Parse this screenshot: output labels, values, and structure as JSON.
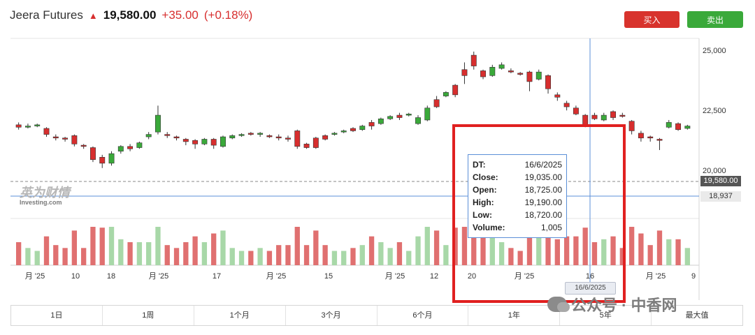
{
  "header": {
    "name": "Jeera Futures",
    "arrow": "up",
    "price": "19,580.00",
    "change": "+35.00",
    "change_pct": "(+0.18%)"
  },
  "buttons": {
    "buy": "买入",
    "sell": "卖出"
  },
  "watermark": {
    "line1": "英为财情",
    "line2": "Investing.com"
  },
  "y_axis_labels": [
    "25,000",
    "22,500",
    "20,000"
  ],
  "price_tags": {
    "current": "19,580.00",
    "crosshair": "18,937"
  },
  "x_axis_labels": [
    "月 '25",
    "10",
    "18",
    "月 '25",
    "17",
    "月 '25",
    "15",
    "月 '25",
    "12",
    "20",
    "月 '25",
    "16",
    "月 '25",
    "9"
  ],
  "tooltip": {
    "rows": [
      {
        "k": "DT:",
        "v": "16/6/2025"
      },
      {
        "k": "Close:",
        "v": "19,035.00"
      },
      {
        "k": "Open:",
        "v": "18,725.00"
      },
      {
        "k": "High:",
        "v": "19,190.00"
      },
      {
        "k": "Low:",
        "v": "18,720.00"
      },
      {
        "k": "Volume:",
        "v": "1,005"
      }
    ]
  },
  "crosshair_date": "16/6/2025",
  "periods": [
    "1日",
    "1周",
    "1个月",
    "3个月",
    "6个月",
    "1年",
    "5年",
    "最大值"
  ],
  "wechat_text": "公众号 · 中香网",
  "colors": {
    "up": "#3aa93a",
    "down": "#d72e2e",
    "volume_up": "#a8d8a8",
    "volume_down": "#e07070",
    "crosshair": "#5b8fd8"
  },
  "chart_data": {
    "type": "candlestick",
    "ylim": [
      18000,
      25500
    ],
    "candles": [
      {
        "o": 21900,
        "c": 21800,
        "h": 22000,
        "l": 21700
      },
      {
        "o": 21800,
        "c": 21850,
        "h": 21950,
        "l": 21750
      },
      {
        "o": 21850,
        "c": 21900,
        "h": 21950,
        "l": 21800
      },
      {
        "o": 21750,
        "c": 21500,
        "h": 21800,
        "l": 21400
      },
      {
        "o": 21400,
        "c": 21350,
        "h": 21500,
        "l": 21250
      },
      {
        "o": 21350,
        "c": 21300,
        "h": 21400,
        "l": 21200
      },
      {
        "o": 21450,
        "c": 21100,
        "h": 21500,
        "l": 21000
      },
      {
        "o": 21050,
        "c": 21000,
        "h": 21100,
        "l": 20900
      },
      {
        "o": 20950,
        "c": 20450,
        "h": 21000,
        "l": 20350
      },
      {
        "o": 20550,
        "c": 20300,
        "h": 20650,
        "l": 20100
      },
      {
        "o": 20300,
        "c": 20700,
        "h": 20800,
        "l": 20200
      },
      {
        "o": 20800,
        "c": 21000,
        "h": 21050,
        "l": 20700
      },
      {
        "o": 21000,
        "c": 20900,
        "h": 21100,
        "l": 20800
      },
      {
        "o": 20950,
        "c": 21150,
        "h": 21200,
        "l": 20900
      },
      {
        "o": 21400,
        "c": 21500,
        "h": 21600,
        "l": 21300
      },
      {
        "o": 21600,
        "c": 22300,
        "h": 22700,
        "l": 21500
      },
      {
        "o": 21500,
        "c": 21450,
        "h": 21600,
        "l": 21350
      },
      {
        "o": 21400,
        "c": 21350,
        "h": 21450,
        "l": 21250
      },
      {
        "o": 21300,
        "c": 21200,
        "h": 21350,
        "l": 21050
      },
      {
        "o": 21250,
        "c": 21100,
        "h": 21300,
        "l": 20900
      },
      {
        "o": 21100,
        "c": 21300,
        "h": 21350,
        "l": 21050
      },
      {
        "o": 21300,
        "c": 21050,
        "h": 21350,
        "l": 20900
      },
      {
        "o": 21000,
        "c": 21400,
        "h": 21450,
        "l": 20950
      },
      {
        "o": 21350,
        "c": 21450,
        "h": 21500,
        "l": 21300
      },
      {
        "o": 21450,
        "c": 21500,
        "h": 21550,
        "l": 21400
      },
      {
        "o": 21550,
        "c": 21500,
        "h": 21600,
        "l": 21450
      },
      {
        "o": 21500,
        "c": 21550,
        "h": 21600,
        "l": 21400
      },
      {
        "o": 21450,
        "c": 21400,
        "h": 21500,
        "l": 21350
      },
      {
        "o": 21400,
        "c": 21350,
        "h": 21500,
        "l": 21250
      },
      {
        "o": 21350,
        "c": 21300,
        "h": 21450,
        "l": 21200
      },
      {
        "o": 21650,
        "c": 21000,
        "h": 21700,
        "l": 20900
      },
      {
        "o": 21100,
        "c": 20950,
        "h": 21150,
        "l": 20900
      },
      {
        "o": 21350,
        "c": 20950,
        "h": 21400,
        "l": 20900
      },
      {
        "o": 21450,
        "c": 21300,
        "h": 21500,
        "l": 21250
      },
      {
        "o": 21500,
        "c": 21550,
        "h": 21600,
        "l": 21450
      },
      {
        "o": 21600,
        "c": 21650,
        "h": 21700,
        "l": 21550
      },
      {
        "o": 21750,
        "c": 21650,
        "h": 21800,
        "l": 21600
      },
      {
        "o": 21700,
        "c": 21850,
        "h": 21900,
        "l": 21650
      },
      {
        "o": 22000,
        "c": 21850,
        "h": 22100,
        "l": 21700
      },
      {
        "o": 21950,
        "c": 22150,
        "h": 22200,
        "l": 21900
      },
      {
        "o": 22150,
        "c": 22250,
        "h": 22300,
        "l": 22100
      },
      {
        "o": 22300,
        "c": 22200,
        "h": 22400,
        "l": 22100
      },
      {
        "o": 22300,
        "c": 22350,
        "h": 22400,
        "l": 22250
      },
      {
        "o": 21950,
        "c": 22200,
        "h": 22300,
        "l": 21900
      },
      {
        "o": 22100,
        "c": 22600,
        "h": 22700,
        "l": 22050
      },
      {
        "o": 22950,
        "c": 22650,
        "h": 23100,
        "l": 22600
      },
      {
        "o": 23100,
        "c": 23250,
        "h": 23300,
        "l": 23050
      },
      {
        "o": 23550,
        "c": 23150,
        "h": 23600,
        "l": 23050
      },
      {
        "o": 24200,
        "c": 23950,
        "h": 24500,
        "l": 23600
      },
      {
        "o": 24800,
        "c": 24350,
        "h": 24950,
        "l": 24200
      },
      {
        "o": 24150,
        "c": 23900,
        "h": 24200,
        "l": 23800
      },
      {
        "o": 23950,
        "c": 24300,
        "h": 24400,
        "l": 23900
      },
      {
        "o": 24250,
        "c": 24400,
        "h": 24500,
        "l": 24200
      },
      {
        "o": 24150,
        "c": 24100,
        "h": 24250,
        "l": 24050
      },
      {
        "o": 24050,
        "c": 24000,
        "h": 24100,
        "l": 23950
      },
      {
        "o": 24100,
        "c": 23700,
        "h": 24150,
        "l": 23300
      },
      {
        "o": 23800,
        "c": 24100,
        "h": 24200,
        "l": 23750
      },
      {
        "o": 23950,
        "c": 23400,
        "h": 24000,
        "l": 23200
      },
      {
        "o": 23150,
        "c": 23050,
        "h": 23250,
        "l": 22900
      },
      {
        "o": 22800,
        "c": 22650,
        "h": 22900,
        "l": 22500
      },
      {
        "o": 22600,
        "c": 22350,
        "h": 22700,
        "l": 22300
      },
      {
        "o": 22300,
        "c": 21900,
        "h": 22350,
        "l": 21800
      },
      {
        "o": 22300,
        "c": 22150,
        "h": 22400,
        "l": 22100
      },
      {
        "o": 22100,
        "c": 22300,
        "h": 22400,
        "l": 22050
      },
      {
        "o": 22450,
        "c": 22200,
        "h": 22500,
        "l": 22100
      },
      {
        "o": 22300,
        "c": 22250,
        "h": 22400,
        "l": 22200
      },
      {
        "o": 22050,
        "c": 21650,
        "h": 22100,
        "l": 21500
      },
      {
        "o": 21550,
        "c": 21350,
        "h": 21650,
        "l": 21200
      },
      {
        "o": 21400,
        "c": 21350,
        "h": 21450,
        "l": 21200
      },
      {
        "o": 21300,
        "c": 21250,
        "h": 21350,
        "l": 20850
      },
      {
        "o": 21800,
        "c": 22000,
        "h": 22100,
        "l": 21750
      },
      {
        "o": 21950,
        "c": 21700,
        "h": 22000,
        "l": 21650
      },
      {
        "o": 21750,
        "c": 21850,
        "h": 21900,
        "l": 21700
      }
    ]
  }
}
